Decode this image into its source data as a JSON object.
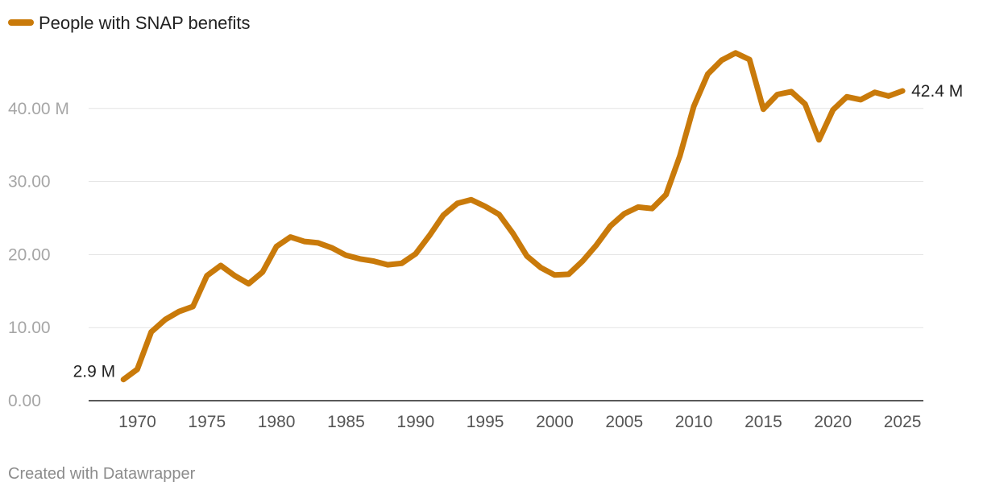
{
  "chart_data": {
    "type": "line",
    "series": [
      {
        "name": "People with SNAP benefits",
        "color": "#c97a0a",
        "start_label": "2.9 M",
        "end_label": "42.4 M",
        "values": [
          2.9,
          4.3,
          9.4,
          11.1,
          12.2,
          12.9,
          17.1,
          18.5,
          17.1,
          16.0,
          17.6,
          21.1,
          22.4,
          21.8,
          21.6,
          20.9,
          19.9,
          19.4,
          19.1,
          18.6,
          18.8,
          20.1,
          22.6,
          25.4,
          27.0,
          27.5,
          26.6,
          25.5,
          22.9,
          19.8,
          18.2,
          17.2,
          17.3,
          19.1,
          21.3,
          23.9,
          25.6,
          26.5,
          26.3,
          28.2,
          33.5,
          40.3,
          44.7,
          46.6,
          47.6,
          46.7,
          39.9,
          41.9,
          42.3,
          40.6,
          35.7,
          39.8,
          41.6,
          41.2,
          42.2,
          41.7,
          42.4
        ]
      }
    ],
    "x": [
      1969,
      1970,
      1971,
      1972,
      1973,
      1974,
      1975,
      1976,
      1977,
      1978,
      1979,
      1980,
      1981,
      1982,
      1983,
      1984,
      1985,
      1986,
      1987,
      1988,
      1989,
      1990,
      1991,
      1992,
      1993,
      1994,
      1995,
      1996,
      1997,
      1998,
      1999,
      2000,
      2001,
      2002,
      2003,
      2004,
      2005,
      2006,
      2007,
      2008,
      2009,
      2010,
      2011,
      2012,
      2013,
      2014,
      2015,
      2016,
      2017,
      2018,
      2019,
      2020,
      2021,
      2022,
      2023,
      2024,
      2025
    ],
    "x_ticks": [
      1970,
      1975,
      1980,
      1985,
      1990,
      1995,
      2000,
      2005,
      2010,
      2015,
      2020,
      2025
    ],
    "y_ticks": [
      0,
      10,
      20,
      30,
      40
    ],
    "y_tick_labels": [
      "0.00",
      "10.00",
      "20.00",
      "30.00",
      "40.00 M"
    ],
    "xlim": [
      1966.5,
      2026.5
    ],
    "ylim": [
      0,
      50
    ],
    "grid": true,
    "legend_position": "top-left"
  },
  "footer": {
    "credit": "Created with Datawrapper"
  }
}
